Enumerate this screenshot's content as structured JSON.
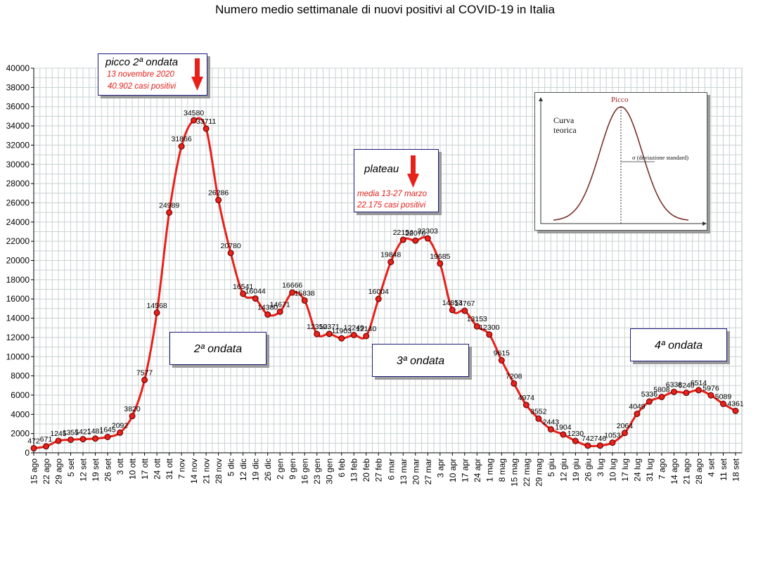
{
  "title": "Numero medio settimanale di nuovi positivi al COVID-19 in Italia",
  "chart_data": {
    "type": "line",
    "categories": [
      "15 ago",
      "22 ago",
      "29 ago",
      "5 set",
      "12 set",
      "19 set",
      "26 set",
      "3 ott",
      "10 ott",
      "17 ott",
      "24 ott",
      "31 ott",
      "7 nov",
      "14 nov",
      "21 nov",
      "28 nov",
      "5 dic",
      "12 dic",
      "19 dic",
      "26 dic",
      "2 gen",
      "9 gen",
      "16 gen",
      "23 gen",
      "30 gen",
      "6 feb",
      "13 feb",
      "20 feb",
      "27 feb",
      "6 mar",
      "13 mar",
      "20 mar",
      "27 mar",
      "3 apr",
      "10 apr",
      "17 apr",
      "24 apr",
      "1 mag",
      "8 mag",
      "15 mag",
      "22 mag",
      "29 mag",
      "5 giu",
      "12 giu",
      "19 giu",
      "26 giu",
      "3 lug",
      "10 lug",
      "17 lug",
      "24 lug",
      "31 lug",
      "7 ago",
      "14 ago",
      "21 ago",
      "28 ago",
      "4 set",
      "11 set",
      "18 set"
    ],
    "values": [
      472,
      671,
      1245,
      1355,
      1421,
      1481,
      1645,
      2092,
      3820,
      7577,
      14568,
      24989,
      31866,
      34580,
      33711,
      26286,
      20780,
      16541,
      16044,
      14380,
      14671,
      16666,
      15838,
      12350,
      12371,
      11903,
      12249,
      12140,
      16004,
      19848,
      22154,
      22070,
      22303,
      19685,
      14853,
      14767,
      13153,
      12300,
      9615,
      7208,
      4974,
      3552,
      2443,
      1904,
      1230,
      742,
      746,
      1053,
      2064,
      4049,
      5336,
      5808,
      6338,
      6240,
      6514,
      5976,
      5089,
      4361
    ],
    "point_labels": [
      "472",
      "671",
      "1245",
      "1355",
      "1421",
      "1481",
      "1645",
      "2092",
      "3820",
      "7577",
      "14568",
      "24989",
      "31866",
      "34580",
      "33711",
      "26286",
      "20780",
      "16541",
      "16044",
      "14380",
      "14671",
      "16666",
      "15838",
      "12350",
      "12371",
      "11903",
      "12249",
      "12140",
      "16004",
      "19848",
      "22154",
      "22070",
      "22303",
      "19685",
      "14853",
      "14767",
      "13153",
      "12300",
      "9615",
      "7208",
      "4974",
      "3552",
      "2443",
      "1904",
      "1230",
      "742",
      "746",
      "1053",
      "2064",
      "4049",
      "5336",
      "5808",
      "6338",
      "6240",
      "6514",
      "5976",
      "5089",
      "4361"
    ],
    "ylim": [
      0,
      40000
    ],
    "ytick_step": 2000,
    "yticks": [
      "0",
      "2000",
      "4000",
      "6000",
      "8000",
      "10000",
      "12000",
      "14000",
      "16000",
      "18000",
      "20000",
      "22000",
      "24000",
      "26000",
      "28000",
      "30000",
      "32000",
      "34000",
      "36000",
      "38000",
      "40000"
    ],
    "xlabel": "",
    "ylabel": "",
    "grid": true,
    "line_color": "#e8201a",
    "marker_color": "#e8201a"
  },
  "annotations": {
    "peak2": {
      "title": "picco 2ª ondata",
      "line1": "13 novembre 2020",
      "line2": "40.902 casi positivi"
    },
    "plateau": {
      "title": "plateau",
      "line1": "media 13-27 marzo",
      "line2": "22.175 casi positivi"
    },
    "wave2": "2ª ondata",
    "wave3": "3ª ondata",
    "wave4": "4ª ondata"
  },
  "inset": {
    "peak_label": "Picco",
    "curve_label_1": "Curva",
    "curve_label_2": "teorica",
    "sigma_label": "σ (deviazione standard)"
  }
}
